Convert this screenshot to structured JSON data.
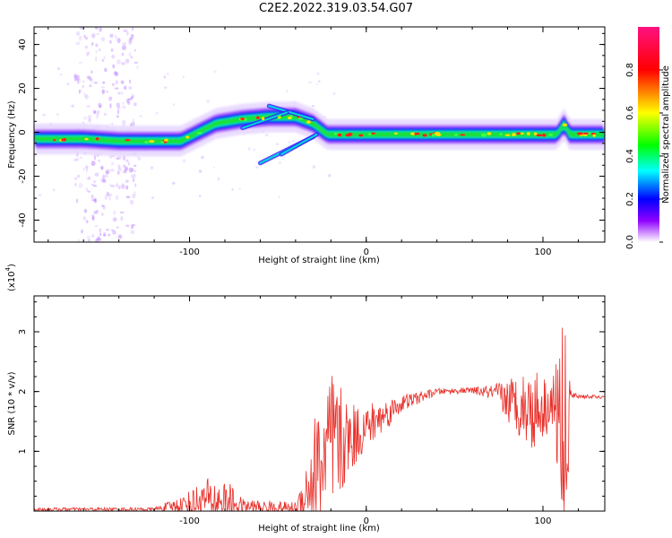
{
  "title": "C2E2.2022.319.03.54.G07",
  "chart_data": [
    {
      "type": "heatmap",
      "xlabel": "Height of straight line (km)",
      "ylabel": "Frequency (Hz)",
      "xlim": [
        -188,
        135
      ],
      "ylim": [
        -50,
        48
      ],
      "x_ticks": [
        -100,
        0,
        100
      ],
      "y_ticks": [
        -40,
        -20,
        0,
        20,
        40
      ],
      "ridge": [
        {
          "x": -188,
          "y": -3
        },
        {
          "x": -160,
          "y": -3
        },
        {
          "x": -140,
          "y": -4
        },
        {
          "x": -120,
          "y": -4
        },
        {
          "x": -105,
          "y": -4
        },
        {
          "x": -95,
          "y": 0
        },
        {
          "x": -85,
          "y": 4
        },
        {
          "x": -70,
          "y": 6
        },
        {
          "x": -55,
          "y": 7
        },
        {
          "x": -40,
          "y": 7
        },
        {
          "x": -30,
          "y": 4
        },
        {
          "x": -22,
          "y": -1
        },
        {
          "x": 0,
          "y": -1
        },
        {
          "x": 50,
          "y": -1
        },
        {
          "x": 108,
          "y": -1
        },
        {
          "x": 112,
          "y": 4
        },
        {
          "x": 115,
          "y": -1
        },
        {
          "x": 135,
          "y": -1
        }
      ],
      "colorbar": {
        "label": "Normalized spectral amplitude",
        "ticks": [
          0.0,
          0.2,
          0.4,
          0.6,
          0.8
        ],
        "range": [
          0,
          1
        ]
      }
    },
    {
      "type": "line",
      "xlabel": "Height of straight line (km)",
      "ylabel": "SNR (10 * v/v)",
      "y_multiplier": "(x10",
      "y_multiplier_exp": "4",
      "y_multiplier_close": ")",
      "xlim": [
        -188,
        135
      ],
      "ylim": [
        0,
        3.6
      ],
      "x_ticks": [
        -100,
        0,
        100
      ],
      "y_ticks": [
        1,
        2,
        3
      ],
      "color": "#e8302a",
      "envelope": [
        {
          "x": -188,
          "base": 0.03,
          "amp": 0.03
        },
        {
          "x": -120,
          "base": 0.03,
          "amp": 0.03
        },
        {
          "x": -105,
          "base": 0.1,
          "amp": 0.15
        },
        {
          "x": -90,
          "base": 0.2,
          "amp": 0.35
        },
        {
          "x": -78,
          "base": 0.15,
          "amp": 0.35
        },
        {
          "x": -70,
          "base": 0.08,
          "amp": 0.12
        },
        {
          "x": -40,
          "base": 0.05,
          "amp": 0.1
        },
        {
          "x": -36,
          "base": 0.2,
          "amp": 0.4
        },
        {
          "x": -30,
          "base": 0.6,
          "amp": 1.0
        },
        {
          "x": -20,
          "base": 1.0,
          "amp": 1.4
        },
        {
          "x": -10,
          "base": 1.2,
          "amp": 0.6
        },
        {
          "x": 0,
          "base": 1.4,
          "amp": 0.4
        },
        {
          "x": 20,
          "base": 1.8,
          "amp": 0.15
        },
        {
          "x": 40,
          "base": 2.0,
          "amp": 0.05
        },
        {
          "x": 60,
          "base": 2.02,
          "amp": 0.05
        },
        {
          "x": 70,
          "base": 1.98,
          "amp": 0.12
        },
        {
          "x": 85,
          "base": 1.8,
          "amp": 0.5
        },
        {
          "x": 95,
          "base": 1.7,
          "amp": 0.7
        },
        {
          "x": 105,
          "base": 1.8,
          "amp": 0.4
        },
        {
          "x": 110,
          "base": 1.5,
          "amp": 1.5
        },
        {
          "x": 113,
          "base": 1.5,
          "amp": 2.0
        },
        {
          "x": 116,
          "base": 1.93,
          "amp": 0.05
        },
        {
          "x": 135,
          "base": 1.9,
          "amp": 0.02
        }
      ]
    }
  ]
}
